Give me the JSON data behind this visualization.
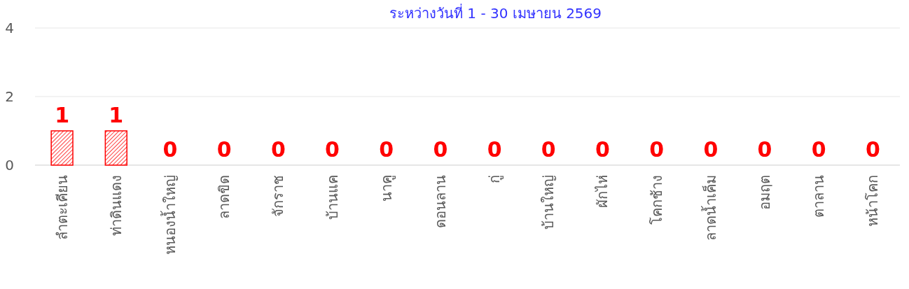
{
  "chart_data": {
    "type": "bar",
    "subtitle": "ระหว่างวันที่ 1 - 30 เมษายน 2569",
    "categories": [
      "ลำตะเคียน",
      "ท่าดินแดง",
      "หนองน้ำใหญ่",
      "ลาดขิด",
      "จักราช",
      "บ้านแค",
      "นาคู",
      "ดอนลาน",
      "กู่",
      "บ้านใหญ่",
      "ผักไห่",
      "โคกช้าง",
      "ลาดน้ำเค็ม",
      "อมฤต",
      "ตาลาน",
      "หน้าโคก"
    ],
    "values": [
      1,
      1,
      0,
      0,
      0,
      0,
      0,
      0,
      0,
      0,
      0,
      0,
      0,
      0,
      0,
      0
    ],
    "color": "#ff0000",
    "ylim": [
      0,
      4
    ],
    "yticks": [
      0,
      2,
      4
    ],
    "grid": "y",
    "data_labels": true
  }
}
